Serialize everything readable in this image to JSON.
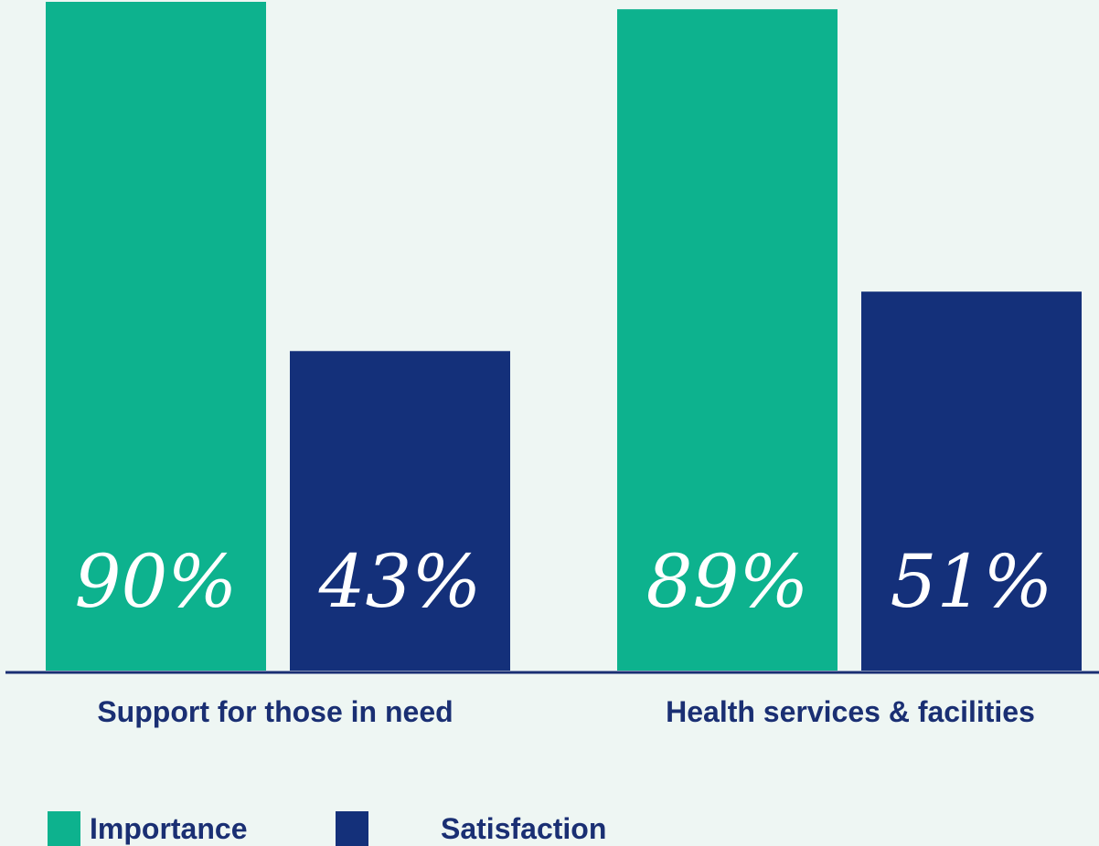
{
  "chart_data": {
    "type": "bar",
    "categories": [
      "Support for those in need",
      "Health services & facilities"
    ],
    "series": [
      {
        "name": "Importance",
        "values": [
          90,
          89
        ],
        "color": "#0db28e"
      },
      {
        "name": "Satisfaction",
        "values": [
          43,
          51
        ],
        "color": "#14307a"
      }
    ],
    "value_labels": [
      [
        "90%",
        "89%"
      ],
      [
        "43%",
        "51%"
      ]
    ],
    "ylim": [
      0,
      90
    ],
    "grid": false,
    "legend_position": "bottom-left",
    "axis_color": "#1a2f73",
    "background": "#eef6f3"
  }
}
